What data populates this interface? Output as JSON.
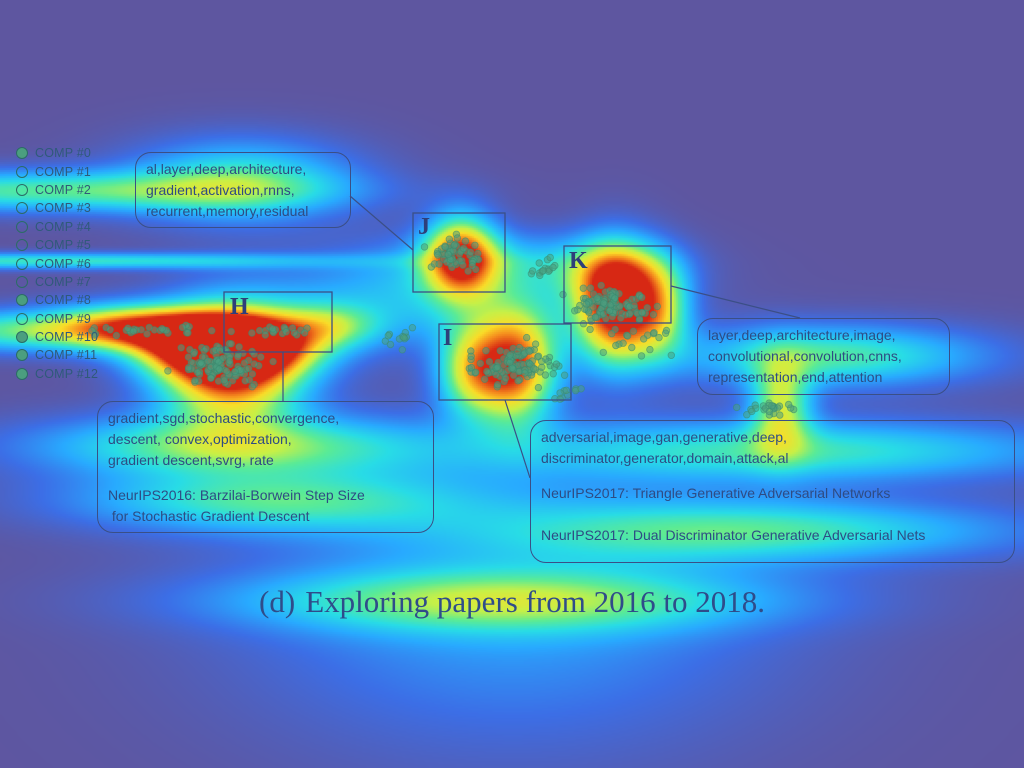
{
  "chart_data": {
    "type": "scatter",
    "legend": {
      "placement": "left",
      "entries": [
        {
          "label": "COMP #0",
          "filled": true
        },
        {
          "label": "COMP #1",
          "filled": false
        },
        {
          "label": "COMP #2",
          "filled": false
        },
        {
          "label": "COMP #3",
          "filled": false
        },
        {
          "label": "COMP #4",
          "filled": false
        },
        {
          "label": "COMP #5",
          "filled": false
        },
        {
          "label": "COMP #6",
          "filled": false
        },
        {
          "label": "COMP #7",
          "filled": false
        },
        {
          "label": "COMP #8",
          "filled": true
        },
        {
          "label": "COMP #9",
          "filled": false
        },
        {
          "label": "COMP #10",
          "filled": true
        },
        {
          "label": "COMP #11",
          "filled": true
        },
        {
          "label": "COMP #12",
          "filled": true
        }
      ]
    },
    "regions": [
      {
        "id": "H",
        "label": "H"
      },
      {
        "id": "I",
        "label": "I"
      },
      {
        "id": "J",
        "label": "J"
      },
      {
        "id": "K",
        "label": "K"
      }
    ],
    "annotations": {
      "j_keywords": [
        "al,layer,deep,architecture,",
        "gradient,activation,rnns,",
        "recurrent,memory,residual"
      ],
      "k_keywords": [
        "layer,deep,architecture,image,",
        "convolutional,convolution,cnns,",
        "representation,end,attention"
      ],
      "h_keywords": [
        "gradient,sgd,stochastic,convergence,",
        "descent, convex,optimization,",
        "gradient descent,svrg, rate"
      ],
      "h_papers": [
        "NeurIPS2016: Barzilai-Borwein Step Size",
        " for Stochastic Gradient Descent"
      ],
      "i_keywords": [
        "adversarial,image,gan,generative,deep,",
        "discriminator,generator,domain,attack,al"
      ],
      "i_papers": [
        "NeurIPS2017: Triangle Generative Adversarial Networks",
        "NeurIPS2017: Dual Discriminator Generative Adversarial Nets"
      ]
    },
    "colors": {
      "background": "#5e56a0",
      "point": "#4b9e7f",
      "box": "#3b4f86"
    }
  },
  "caption": {
    "number": "(d)",
    "text": "Exploring papers from 2016 to 2018."
  }
}
